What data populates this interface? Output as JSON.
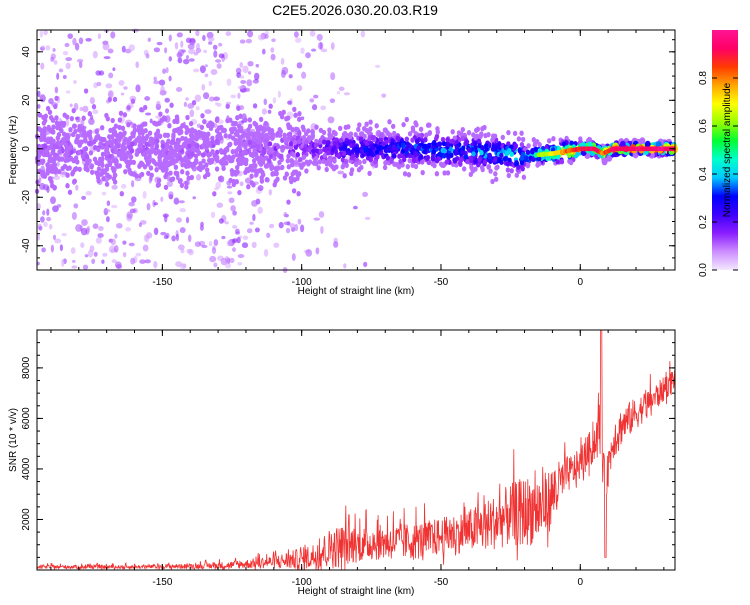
{
  "title": "C2E5.2026.030.20.03.R19",
  "chart_data": [
    {
      "type": "heatmap",
      "name": "spectrogram",
      "xlabel": "Height of straight line (km)",
      "ylabel": "Frequency (Hz)",
      "xlim": [
        -195,
        34
      ],
      "ylim": [
        -50,
        49
      ],
      "xticks": [
        -150,
        -100,
        -50,
        0
      ],
      "xtick_labels": [
        "-150",
        "-100",
        "-50",
        "0"
      ],
      "yticks": [
        -40,
        -20,
        0,
        20,
        40
      ],
      "ytick_labels": [
        "-40",
        "-20",
        "0",
        "20",
        "40"
      ],
      "ridge": {
        "note": "main spectral ridge center frequency vs height",
        "x": [
          -195,
          -150,
          -120,
          -100,
          -80,
          -60,
          -40,
          -30,
          -20,
          -10,
          0,
          5,
          8,
          12,
          20,
          34
        ],
        "freq": [
          0,
          0,
          0,
          0,
          0,
          0,
          -1,
          -2,
          -3,
          -2,
          0,
          0,
          -2,
          0,
          0,
          0
        ],
        "amplitude": [
          0.12,
          0.12,
          0.12,
          0.18,
          0.3,
          0.35,
          0.38,
          0.4,
          0.45,
          0.7,
          0.9,
          0.95,
          0.8,
          0.95,
          0.95,
          0.95
        ]
      }
    },
    {
      "type": "colorbar",
      "label": "Normalized spectral amplitude",
      "ticks": [
        0.0,
        0.2,
        0.4,
        0.6,
        0.8
      ],
      "tick_labels": [
        "0.0",
        "0.2",
        "0.4",
        "0.6",
        "0.8"
      ],
      "range": [
        0,
        1
      ],
      "colors": [
        "#f4e8ff",
        "#cc8dff",
        "#8a1dff",
        "#3c00ff",
        "#0000ff",
        "#00c8ff",
        "#00ffcc",
        "#00ff33",
        "#99ff00",
        "#ffff00",
        "#ffa500",
        "#ff3b00",
        "#ff0066",
        "#ff1493"
      ]
    },
    {
      "type": "line",
      "name": "snr",
      "xlabel": "Height of straight line (km)",
      "ylabel": "SNR (10 * v/v)",
      "xlim": [
        -195,
        34
      ],
      "ylim": [
        0,
        9500
      ],
      "xticks": [
        -150,
        -100,
        -50,
        0
      ],
      "xtick_labels": [
        "-150",
        "-100",
        "-50",
        "0"
      ],
      "yticks": [
        2000,
        4000,
        6000,
        8000
      ],
      "ytick_labels": [
        "2000",
        "4000",
        "6000",
        "8000"
      ],
      "color": "#f03232",
      "envelope": {
        "x": [
          -195,
          -160,
          -140,
          -125,
          -110,
          -100,
          -95,
          -90,
          -85,
          -80,
          -70,
          -60,
          -50,
          -40,
          -35,
          -30,
          -25,
          -20,
          -15,
          -12,
          -10,
          -8,
          -5,
          0,
          3,
          5,
          7,
          9,
          10,
          12,
          15,
          20,
          25,
          30,
          34
        ],
        "base": [
          100,
          100,
          120,
          150,
          250,
          300,
          400,
          600,
          700,
          800,
          900,
          900,
          1100,
          1300,
          1400,
          1600,
          1800,
          1900,
          2000,
          2200,
          2600,
          3000,
          3500,
          4000,
          4500,
          4800,
          5200,
          3000,
          3800,
          5000,
          5500,
          6000,
          6500,
          7000,
          7500
        ],
        "amp": [
          150,
          150,
          200,
          300,
          500,
          900,
          1100,
          1600,
          1800,
          1400,
          1400,
          1500,
          1500,
          1700,
          2000,
          2200,
          2500,
          2800,
          2800,
          2600,
          2400,
          2000,
          1500,
          1200,
          1400,
          1600,
          2000,
          1500,
          1500,
          1600,
          1500,
          1300,
          1100,
          1000,
          900
        ]
      },
      "peak": {
        "x": 7.5,
        "y": 9500
      },
      "dip": {
        "x": 9,
        "y": 500
      }
    }
  ]
}
